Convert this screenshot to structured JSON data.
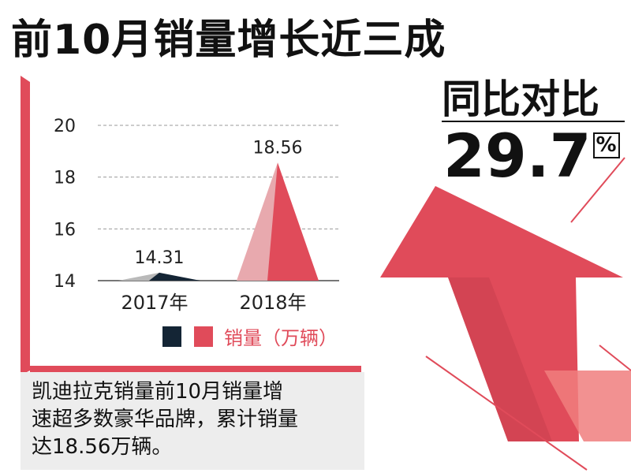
{
  "headline": "前10月销量增长近三成",
  "comparison": {
    "label": "同比对比",
    "value": "29.7",
    "unit": "%"
  },
  "caption": {
    "lines": [
      "凯迪拉克销量前10月销量增",
      "速超多数豪华品牌，累计销量",
      "达18.56万辆。"
    ]
  },
  "colors": {
    "accent_red": "#e04b5a",
    "light_red": "#e8a9ae",
    "dark_navy": "#142535",
    "gray": "#b9b9b9",
    "caption_bg": "#ededed"
  },
  "chart_data": {
    "type": "bar",
    "categories": [
      "2017年",
      "2018年"
    ],
    "series": [
      {
        "name": "销量（万辆）",
        "values": [
          14.31,
          18.56
        ]
      }
    ],
    "data_labels": [
      "14.31",
      "18.56"
    ],
    "y_ticks": [
      "14",
      "16",
      "18",
      "20"
    ],
    "ylim": [
      14,
      20
    ],
    "legend": {
      "label": "销量（万辆）",
      "placement": "bottom"
    },
    "grid": true
  }
}
